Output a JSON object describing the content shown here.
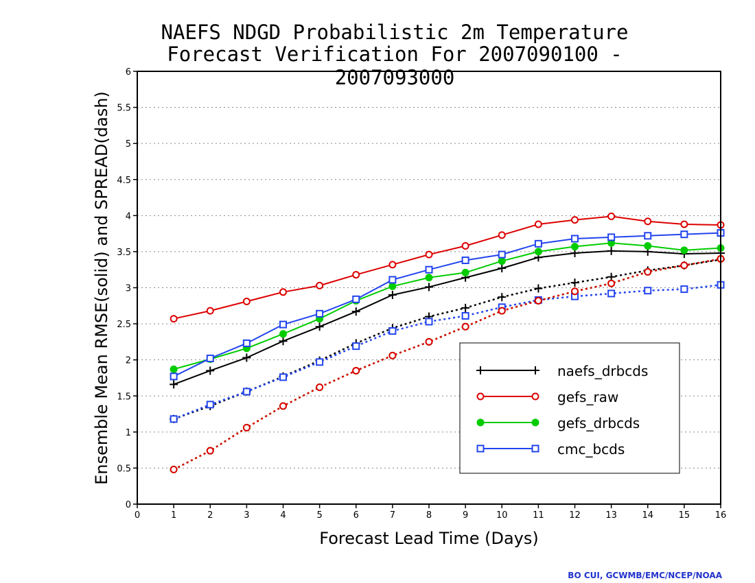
{
  "title_line1": "NAEFS NDGD Probabilistic 2m Temperature",
  "title_line2": "Forecast Verification For 2007090100 - 2007093000",
  "credit": "BO CUI, GCWMB/EMC/NCEP/NOAA",
  "chart_data": {
    "type": "line",
    "xlabel": "Forecast Lead Time (Days)",
    "ylabel": "Ensemble Mean RMSE(solid) and SPREAD(dash)",
    "xlim": [
      0,
      16
    ],
    "ylim": [
      0,
      6
    ],
    "xticks": [
      0,
      1,
      2,
      3,
      4,
      5,
      6,
      7,
      8,
      9,
      10,
      11,
      12,
      13,
      14,
      15,
      16
    ],
    "yticks": [
      "0",
      "0.5",
      "1",
      "1.5",
      "2",
      "2.5",
      "3",
      "3.5",
      "4",
      "4.5",
      "5",
      "5.5",
      "6"
    ],
    "grid": "horizontal dotted",
    "legend_position": "lower-right",
    "x": [
      1,
      2,
      3,
      4,
      5,
      6,
      7,
      8,
      9,
      10,
      11,
      12,
      13,
      14,
      15,
      16
    ],
    "series": [
      {
        "name": "naefs_drbcds",
        "color": "#000000",
        "marker": "plus",
        "rmse": [
          1.66,
          1.85,
          2.03,
          2.26,
          2.46,
          2.67,
          2.9,
          3.01,
          3.14,
          3.27,
          3.42,
          3.48,
          3.51,
          3.5,
          3.47,
          3.48
        ],
        "spread": [
          1.18,
          1.36,
          1.56,
          1.77,
          1.99,
          2.23,
          2.44,
          2.6,
          2.72,
          2.87,
          2.99,
          3.07,
          3.15,
          3.24,
          3.31,
          3.39
        ]
      },
      {
        "name": "gefs_raw",
        "color": "#dd0000",
        "marker": "open-circle",
        "rmse": [
          2.57,
          2.68,
          2.81,
          2.94,
          3.03,
          3.18,
          3.32,
          3.46,
          3.58,
          3.73,
          3.88,
          3.94,
          3.99,
          3.92,
          3.88,
          3.87
        ],
        "spread": [
          0.48,
          0.74,
          1.06,
          1.36,
          1.62,
          1.85,
          2.06,
          2.25,
          2.46,
          2.68,
          2.82,
          2.95,
          3.06,
          3.22,
          3.31,
          3.4
        ]
      },
      {
        "name": "gefs_drbcds",
        "color": "#00cc00",
        "marker": "filled-circle",
        "rmse": [
          1.87,
          2.01,
          2.16,
          2.36,
          2.57,
          2.82,
          3.02,
          3.14,
          3.21,
          3.37,
          3.5,
          3.57,
          3.62,
          3.58,
          3.52,
          3.55
        ],
        "spread": [
          0.48,
          0.74,
          1.06,
          1.36,
          1.62,
          1.85,
          2.06,
          2.25,
          2.46,
          2.68,
          2.82,
          2.95,
          3.06,
          3.22,
          3.31,
          3.4
        ]
      },
      {
        "name": "cmc_bcds",
        "color": "#2244ee",
        "marker": "open-square",
        "rmse": [
          1.77,
          2.02,
          2.23,
          2.49,
          2.64,
          2.84,
          3.11,
          3.25,
          3.38,
          3.46,
          3.61,
          3.68,
          3.7,
          3.72,
          3.74,
          3.76
        ],
        "spread": [
          1.18,
          1.38,
          1.56,
          1.76,
          1.97,
          2.19,
          2.4,
          2.53,
          2.61,
          2.73,
          2.83,
          2.88,
          2.92,
          2.96,
          2.98,
          3.04
        ]
      }
    ]
  }
}
